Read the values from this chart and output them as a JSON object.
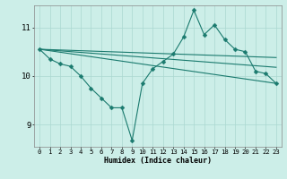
{
  "title": "",
  "xlabel": "Humidex (Indice chaleur)",
  "bg_color": "#cceee8",
  "line_color": "#1a7a6e",
  "grid_color": "#aad8d0",
  "xlim": [
    -0.5,
    23.5
  ],
  "ylim": [
    8.55,
    11.45
  ],
  "yticks": [
    9,
    10,
    11
  ],
  "xticks": [
    0,
    1,
    2,
    3,
    4,
    5,
    6,
    7,
    8,
    9,
    10,
    11,
    12,
    13,
    14,
    15,
    16,
    17,
    18,
    19,
    20,
    21,
    22,
    23
  ],
  "main_line": {
    "x": [
      0,
      1,
      2,
      3,
      4,
      5,
      6,
      7,
      8,
      9,
      10,
      11,
      12,
      13,
      14,
      15,
      16,
      17,
      18,
      19,
      20,
      21,
      22,
      23
    ],
    "y": [
      10.55,
      10.35,
      10.25,
      10.2,
      10.0,
      9.75,
      9.55,
      9.35,
      9.35,
      8.68,
      9.85,
      10.15,
      10.3,
      10.45,
      10.8,
      11.35,
      10.85,
      11.05,
      10.75,
      10.55,
      10.5,
      10.1,
      10.05,
      9.85
    ]
  },
  "trend_lines": [
    {
      "x": [
        0,
        23
      ],
      "y": [
        10.55,
        9.85
      ]
    },
    {
      "x": [
        0,
        23
      ],
      "y": [
        10.55,
        10.18
      ]
    },
    {
      "x": [
        0,
        23
      ],
      "y": [
        10.55,
        10.38
      ]
    }
  ],
  "xlabel_fontsize": 6,
  "ytick_fontsize": 6.5,
  "xtick_fontsize": 5.2
}
